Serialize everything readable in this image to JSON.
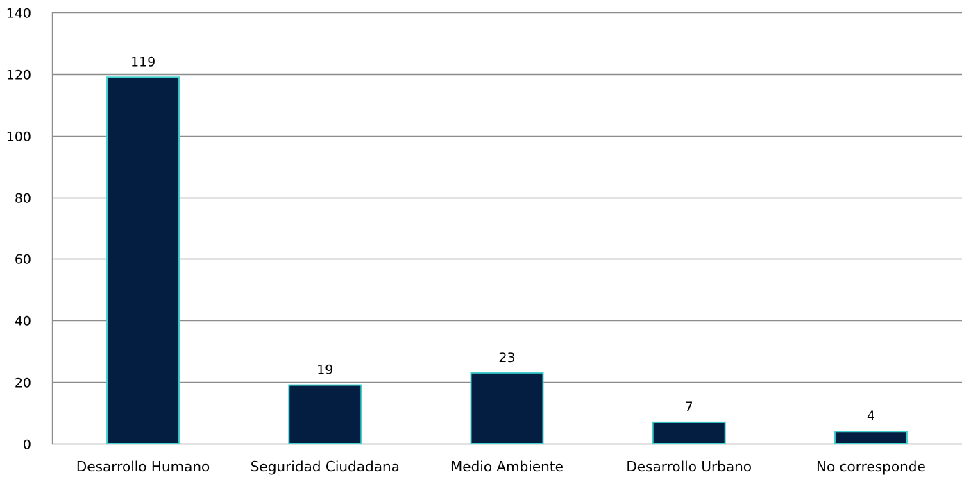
{
  "chart_data": {
    "type": "bar",
    "categories": [
      "Desarrollo Humano",
      "Seguridad Ciudadana",
      "Medio Ambiente",
      "Desarrollo Urbano",
      "No corresponde"
    ],
    "values": [
      119,
      19,
      23,
      7,
      4
    ],
    "yticks": [
      "0",
      "20",
      "40",
      "60",
      "80",
      "100",
      "120",
      "140"
    ],
    "ylim": [
      0,
      140
    ],
    "grid": true,
    "legend": "none",
    "colors": {
      "bar_fill": "#041e42",
      "bar_stroke": "#3fd0cf",
      "gridline": "#8c8c8c",
      "axis": "#8c8c8c"
    }
  }
}
